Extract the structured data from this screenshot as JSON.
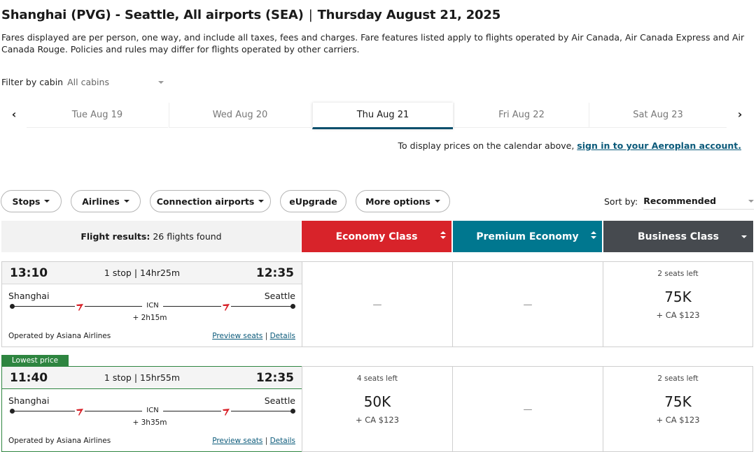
{
  "header": {
    "route": "Shanghai (PVG) - Seattle, All airports (SEA)",
    "separator": "|",
    "date": "Thursday August 21, 2025",
    "fare_note": "Fares displayed are per person, one way, and include all taxes, fees and charges. Fare features listed apply to flights operated by Air Canada, Air Canada Express and Air Canada Rouge. Policies and rules may differ for flights operated by other carriers."
  },
  "cabin_filter": {
    "label": "Filter by cabin",
    "value": "All cabins"
  },
  "date_tabs": [
    {
      "label": "Tue Aug 19",
      "active": false
    },
    {
      "label": "Wed Aug 20",
      "active": false
    },
    {
      "label": "Thu Aug 21",
      "active": true
    },
    {
      "label": "Fri Aug 22",
      "active": false
    },
    {
      "label": "Sat Aug 23",
      "active": false
    }
  ],
  "nav": {
    "prev_icon": "‹",
    "next_icon": "›"
  },
  "signin": {
    "text": "To display prices on the calendar above,",
    "link": "sign in to your Aeroplan account."
  },
  "filters": {
    "stops": "Stops",
    "airlines": "Airlines",
    "connection_airports": "Connection airports",
    "eupgrade": "eUpgrade",
    "more_options": "More options"
  },
  "sort": {
    "label": "Sort by:",
    "value": "Recommended"
  },
  "results": {
    "label": "Flight results:",
    "count": "26 flights found"
  },
  "cabins": {
    "economy": {
      "label": "Economy Class",
      "color": "#d8232a"
    },
    "premium": {
      "label": "Premium Economy",
      "color": "#00778f"
    },
    "business": {
      "label": "Business Class",
      "color": "#464a4f"
    }
  },
  "lowest_price_badge": "Lowest price",
  "flights": [
    {
      "depart": "13:10",
      "arrive": "12:35",
      "summary": "1 stop | 14hr25m",
      "origin": "Shanghai",
      "destination": "Seattle",
      "via": "ICN",
      "layover": "+ 2h15m",
      "operated_by": "Operated by Asiana Airlines",
      "preview_seats": "Preview seats",
      "link_sep": "|",
      "details": "Details",
      "economy": {
        "dash": "—"
      },
      "premium": {
        "dash": "—"
      },
      "business": {
        "seats": "2 seats left",
        "points": "75K",
        "cash": "+ CA $123"
      }
    },
    {
      "depart": "11:40",
      "arrive": "12:35",
      "summary": "1 stop | 15hr55m",
      "origin": "Shanghai",
      "destination": "Seattle",
      "via": "ICN",
      "layover": "+ 3h35m",
      "operated_by": "Operated by Asiana Airlines",
      "preview_seats": "Preview seats",
      "link_sep": "|",
      "details": "Details",
      "economy": {
        "seats": "4 seats left",
        "points": "50K",
        "cash": "+ CA $123"
      },
      "premium": {
        "dash": "—"
      },
      "business": {
        "seats": "2 seats left",
        "points": "75K",
        "cash": "+ CA $123"
      }
    }
  ]
}
